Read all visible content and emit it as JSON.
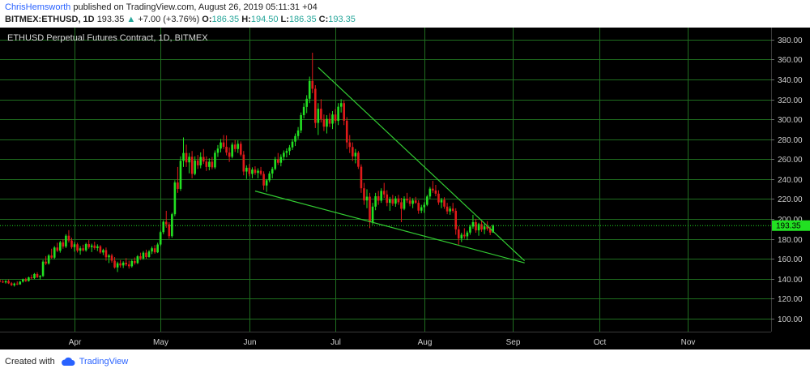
{
  "header": {
    "author": "ChrisHemsworth",
    "published_text": "published on TradingView.com, August 26, 2019 05:11:31 +04",
    "symbol": "BITMEX:ETHUSD, 1D",
    "last": "193.35",
    "change_arrow": "▲",
    "change": "+7.00 (+3.76%)",
    "o_label": "O:",
    "o_value": "186.35",
    "h_label": "H:",
    "h_value": "194.50",
    "l_label": "L:",
    "l_value": "186.35",
    "c_label": "C:",
    "c_value": "193.35"
  },
  "footer": {
    "created_with": "Created with",
    "brand": "TradingView"
  },
  "colors": {
    "up": "#22e022",
    "down": "#e01a1a",
    "grid": "#1f6e1f",
    "trendline": "#33cc33",
    "background": "#000000",
    "price_tag": "#22e022",
    "brand": "#2962ff"
  },
  "chart_data": {
    "type": "candlestick",
    "title": "ETHUSD Perpetual Futures Contract, 1D, BITMEX",
    "ylim": [
      87,
      392
    ],
    "y_ticks": [
      100,
      120,
      140,
      160,
      180,
      200,
      220,
      240,
      260,
      280,
      300,
      320,
      340,
      360,
      380
    ],
    "y_tick_labels": [
      "100.00",
      "120.00",
      "140.00",
      "160.00",
      "180.00",
      "200.00",
      "220.00",
      "240.00",
      "260.00",
      "280.00",
      "300.00",
      "320.00",
      "340.00",
      "360.00",
      "380.00"
    ],
    "x_range": [
      "2019-03-06",
      "2019-11-30"
    ],
    "x_ticks": [
      "2019-04-01",
      "2019-05-01",
      "2019-06-01",
      "2019-07-01",
      "2019-08-01",
      "2019-09-01",
      "2019-10-01",
      "2019-11-01"
    ],
    "x_tick_labels": [
      "Apr",
      "May",
      "Jun",
      "Jul",
      "Aug",
      "Sep",
      "Oct",
      "Nov"
    ],
    "current_price": 193.35,
    "current_price_label": "193.35",
    "start_date": "2019-03-06",
    "candles": [
      [
        138.0,
        139.5,
        136.5,
        137.2
      ],
      [
        137.2,
        138.8,
        135.8,
        136.4
      ],
      [
        136.4,
        138.6,
        135.2,
        137.8
      ],
      [
        137.8,
        139.2,
        134.8,
        135.5
      ],
      [
        135.5,
        136.8,
        132.8,
        133.6
      ],
      [
        133.6,
        136.2,
        132.2,
        135.2
      ],
      [
        135.2,
        137.4,
        133.6,
        134.4
      ],
      [
        134.4,
        137.8,
        134.0,
        137.2
      ],
      [
        137.2,
        140.2,
        136.2,
        139.4
      ],
      [
        139.4,
        141.0,
        136.8,
        137.8
      ],
      [
        137.8,
        142.2,
        137.2,
        141.4
      ],
      [
        141.4,
        144.2,
        139.6,
        140.6
      ],
      [
        140.6,
        145.8,
        139.8,
        144.8
      ],
      [
        144.8,
        146.6,
        140.8,
        141.6
      ],
      [
        141.6,
        143.8,
        139.2,
        142.8
      ],
      [
        142.8,
        158.8,
        141.8,
        157.2
      ],
      [
        157.2,
        162.8,
        153.8,
        155.4
      ],
      [
        155.4,
        164.8,
        154.2,
        163.4
      ],
      [
        163.4,
        170.2,
        160.2,
        161.2
      ],
      [
        161.2,
        172.8,
        159.8,
        171.4
      ],
      [
        171.4,
        176.2,
        166.8,
        168.2
      ],
      [
        168.2,
        178.2,
        166.2,
        176.6
      ],
      [
        176.6,
        179.8,
        170.2,
        172.4
      ],
      [
        172.4,
        184.8,
        170.8,
        183.2
      ],
      [
        183.2,
        188.8,
        176.4,
        178.4
      ],
      [
        178.4,
        181.2,
        170.2,
        171.8
      ],
      [
        171.8,
        176.8,
        167.2,
        174.6
      ],
      [
        174.6,
        176.2,
        166.4,
        168.2
      ],
      [
        168.2,
        172.8,
        164.2,
        170.6
      ],
      [
        170.6,
        174.2,
        167.4,
        168.6
      ],
      [
        168.6,
        176.2,
        167.2,
        174.8
      ],
      [
        174.8,
        178.8,
        170.2,
        171.8
      ],
      [
        171.8,
        175.2,
        166.8,
        173.4
      ],
      [
        173.4,
        177.2,
        169.2,
        170.8
      ],
      [
        170.8,
        174.6,
        167.8,
        172.6
      ],
      [
        172.6,
        173.8,
        165.2,
        166.4
      ],
      [
        166.4,
        170.2,
        163.8,
        168.8
      ],
      [
        168.8,
        171.4,
        158.2,
        161.6
      ],
      [
        161.6,
        164.8,
        155.8,
        163.4
      ],
      [
        163.4,
        165.2,
        156.2,
        158.2
      ],
      [
        158.2,
        161.8,
        150.2,
        151.4
      ],
      [
        151.4,
        157.2,
        146.8,
        155.6
      ],
      [
        155.6,
        158.8,
        151.2,
        153.4
      ],
      [
        153.4,
        157.6,
        150.8,
        156.2
      ],
      [
        156.2,
        160.8,
        152.8,
        154.4
      ],
      [
        154.4,
        158.2,
        150.2,
        152.6
      ],
      [
        152.6,
        159.2,
        151.2,
        157.8
      ],
      [
        157.8,
        161.4,
        154.2,
        155.8
      ],
      [
        155.8,
        163.8,
        154.8,
        162.6
      ],
      [
        162.6,
        166.2,
        158.8,
        160.4
      ],
      [
        160.4,
        167.8,
        159.2,
        166.2
      ],
      [
        166.2,
        169.2,
        160.2,
        161.8
      ],
      [
        161.8,
        168.8,
        161.2,
        167.4
      ],
      [
        167.4,
        172.4,
        164.8,
        170.6
      ],
      [
        170.6,
        173.8,
        165.2,
        166.6
      ],
      [
        166.6,
        176.2,
        165.8,
        174.4
      ],
      [
        174.4,
        188.2,
        172.8,
        186.8
      ],
      [
        186.8,
        198.8,
        184.8,
        197.2
      ],
      [
        197.2,
        208.2,
        191.2,
        194.6
      ],
      [
        194.6,
        196.8,
        180.2,
        182.8
      ],
      [
        182.8,
        206.2,
        181.2,
        204.8
      ],
      [
        204.8,
        238.8,
        202.8,
        236.6
      ],
      [
        236.6,
        252.2,
        226.2,
        230.2
      ],
      [
        230.2,
        262.8,
        228.2,
        258.4
      ],
      [
        258.4,
        281.8,
        252.2,
        266.2
      ],
      [
        266.2,
        274.6,
        252.2,
        256.8
      ],
      [
        256.8,
        266.2,
        245.8,
        262.4
      ],
      [
        262.4,
        268.2,
        240.8,
        245.2
      ],
      [
        245.2,
        262.8,
        243.8,
        258.6
      ],
      [
        258.6,
        264.2,
        250.2,
        253.8
      ],
      [
        253.8,
        266.8,
        250.8,
        262.2
      ],
      [
        262.2,
        270.2,
        255.2,
        257.6
      ],
      [
        257.6,
        262.8,
        248.2,
        252.2
      ],
      [
        252.2,
        260.8,
        248.8,
        257.4
      ],
      [
        257.4,
        262.2,
        249.8,
        251.8
      ],
      [
        251.8,
        268.8,
        250.2,
        266.4
      ],
      [
        266.4,
        274.2,
        262.2,
        270.6
      ],
      [
        270.6,
        280.2,
        266.8,
        276.8
      ],
      [
        276.8,
        284.2,
        270.2,
        272.4
      ],
      [
        272.4,
        283.8,
        263.8,
        266.6
      ],
      [
        266.6,
        271.8,
        257.2,
        262.4
      ],
      [
        262.4,
        276.8,
        260.8,
        274.6
      ],
      [
        274.6,
        279.2,
        267.2,
        270.2
      ],
      [
        270.2,
        278.8,
        266.2,
        275.4
      ],
      [
        275.4,
        277.8,
        262.8,
        264.6
      ],
      [
        264.6,
        268.2,
        243.8,
        247.6
      ],
      [
        247.6,
        253.8,
        240.2,
        251.4
      ],
      [
        251.4,
        255.2,
        242.8,
        245.2
      ],
      [
        245.2,
        251.8,
        240.8,
        249.6
      ],
      [
        249.6,
        252.8,
        244.2,
        246.2
      ],
      [
        246.2,
        250.8,
        240.8,
        248.4
      ],
      [
        248.4,
        252.2,
        243.6,
        245.2
      ],
      [
        245.2,
        247.8,
        229.2,
        233.6
      ],
      [
        233.6,
        240.2,
        227.2,
        238.8
      ],
      [
        238.8,
        247.8,
        236.8,
        245.6
      ],
      [
        245.6,
        252.2,
        240.8,
        250.2
      ],
      [
        250.2,
        262.2,
        248.8,
        259.8
      ],
      [
        259.8,
        266.2,
        254.2,
        256.4
      ],
      [
        256.4,
        264.8,
        252.8,
        262.2
      ],
      [
        262.2,
        268.8,
        258.8,
        266.4
      ],
      [
        266.4,
        270.8,
        261.8,
        268.2
      ],
      [
        268.2,
        274.2,
        264.2,
        271.8
      ],
      [
        271.8,
        280.2,
        269.2,
        277.6
      ],
      [
        277.6,
        285.8,
        273.2,
        283.2
      ],
      [
        283.2,
        292.2,
        280.2,
        288.8
      ],
      [
        288.8,
        306.8,
        286.2,
        304.2
      ],
      [
        304.2,
        316.2,
        300.8,
        312.4
      ],
      [
        312.4,
        324.2,
        306.2,
        320.6
      ],
      [
        320.6,
        342.8,
        316.2,
        338.4
      ],
      [
        338.4,
        366.8,
        326.2,
        330.6
      ],
      [
        330.6,
        334.2,
        291.2,
        296.4
      ],
      [
        296.4,
        316.2,
        284.2,
        310.6
      ],
      [
        310.6,
        320.2,
        296.8,
        300.2
      ],
      [
        300.2,
        304.8,
        288.2,
        292.6
      ],
      [
        292.6,
        304.2,
        285.8,
        300.4
      ],
      [
        300.4,
        306.2,
        292.2,
        295.6
      ],
      [
        295.6,
        308.2,
        290.2,
        304.8
      ],
      [
        304.8,
        310.2,
        296.2,
        298.4
      ],
      [
        298.4,
        316.2,
        294.2,
        312.6
      ],
      [
        312.6,
        320.2,
        306.8,
        316.2
      ],
      [
        316.2,
        318.8,
        294.2,
        298.6
      ],
      [
        298.6,
        302.2,
        270.2,
        276.8
      ],
      [
        276.8,
        284.2,
        266.2,
        272.2
      ],
      [
        272.2,
        276.8,
        258.2,
        262.8
      ],
      [
        262.8,
        270.2,
        255.8,
        266.4
      ],
      [
        266.4,
        268.2,
        250.2,
        252.4
      ],
      [
        252.4,
        254.8,
        226.2,
        230.8
      ],
      [
        230.8,
        236.2,
        214.2,
        218.6
      ],
      [
        218.6,
        229.8,
        210.8,
        222.4
      ],
      [
        222.4,
        226.2,
        190.8,
        196.8
      ],
      [
        196.8,
        216.2,
        194.2,
        212.4
      ],
      [
        212.4,
        226.2,
        208.8,
        222.8
      ],
      [
        222.8,
        228.2,
        214.2,
        218.4
      ],
      [
        218.4,
        230.8,
        216.2,
        228.2
      ],
      [
        228.2,
        236.2,
        221.2,
        224.6
      ],
      [
        224.6,
        228.8,
        212.8,
        216.2
      ],
      [
        216.2,
        222.2,
        208.2,
        219.8
      ],
      [
        219.8,
        224.2,
        213.2,
        215.4
      ],
      [
        215.4,
        222.8,
        212.2,
        220.6
      ],
      [
        220.6,
        224.2,
        214.2,
        216.8
      ],
      [
        216.8,
        221.2,
        196.8,
        210.2
      ],
      [
        210.2,
        222.8,
        208.8,
        220.4
      ],
      [
        220.4,
        226.2,
        216.2,
        218.6
      ],
      [
        218.6,
        222.2,
        212.8,
        215.2
      ],
      [
        215.2,
        220.8,
        210.8,
        218.6
      ],
      [
        218.6,
        222.2,
        215.2,
        216.2
      ],
      [
        216.2,
        218.8,
        205.2,
        208.4
      ],
      [
        208.4,
        214.2,
        205.8,
        211.8
      ],
      [
        211.8,
        216.8,
        206.2,
        214.2
      ],
      [
        214.2,
        224.2,
        212.8,
        222.6
      ],
      [
        222.6,
        232.2,
        220.2,
        230.4
      ],
      [
        230.4,
        238.2,
        226.2,
        228.6
      ],
      [
        228.6,
        234.2,
        222.8,
        225.4
      ],
      [
        225.4,
        228.8,
        214.2,
        216.6
      ],
      [
        216.6,
        221.2,
        210.8,
        219.2
      ],
      [
        219.2,
        221.8,
        210.2,
        212.4
      ],
      [
        212.4,
        216.2,
        204.8,
        207.6
      ],
      [
        207.6,
        212.8,
        204.2,
        210.4
      ],
      [
        210.4,
        216.2,
        206.2,
        208.2
      ],
      [
        208.2,
        210.8,
        184.2,
        189.6
      ],
      [
        189.6,
        192.8,
        174.2,
        180.4
      ],
      [
        180.4,
        186.2,
        176.8,
        184.2
      ],
      [
        184.2,
        190.8,
        180.2,
        182.6
      ],
      [
        182.6,
        188.2,
        178.8,
        186.4
      ],
      [
        186.4,
        194.2,
        184.2,
        192.4
      ],
      [
        192.4,
        204.2,
        190.2,
        196.8
      ],
      [
        196.8,
        200.2,
        186.2,
        188.6
      ],
      [
        188.6,
        196.2,
        183.2,
        194.8
      ],
      [
        194.8,
        198.2,
        187.2,
        189.4
      ],
      [
        189.4,
        195.2,
        184.8,
        192.6
      ],
      [
        192.6,
        197.8,
        188.2,
        190.2
      ],
      [
        190.2,
        192.6,
        183.8,
        186.4
      ],
      [
        186.35,
        194.5,
        186.35,
        193.35
      ]
    ],
    "trendlines": [
      {
        "from": [
          "2019-06-25",
          352
        ],
        "to": [
          "2019-09-05",
          158
        ]
      },
      {
        "from": [
          "2019-06-03",
          228
        ],
        "to": [
          "2019-09-05",
          156
        ]
      }
    ]
  }
}
